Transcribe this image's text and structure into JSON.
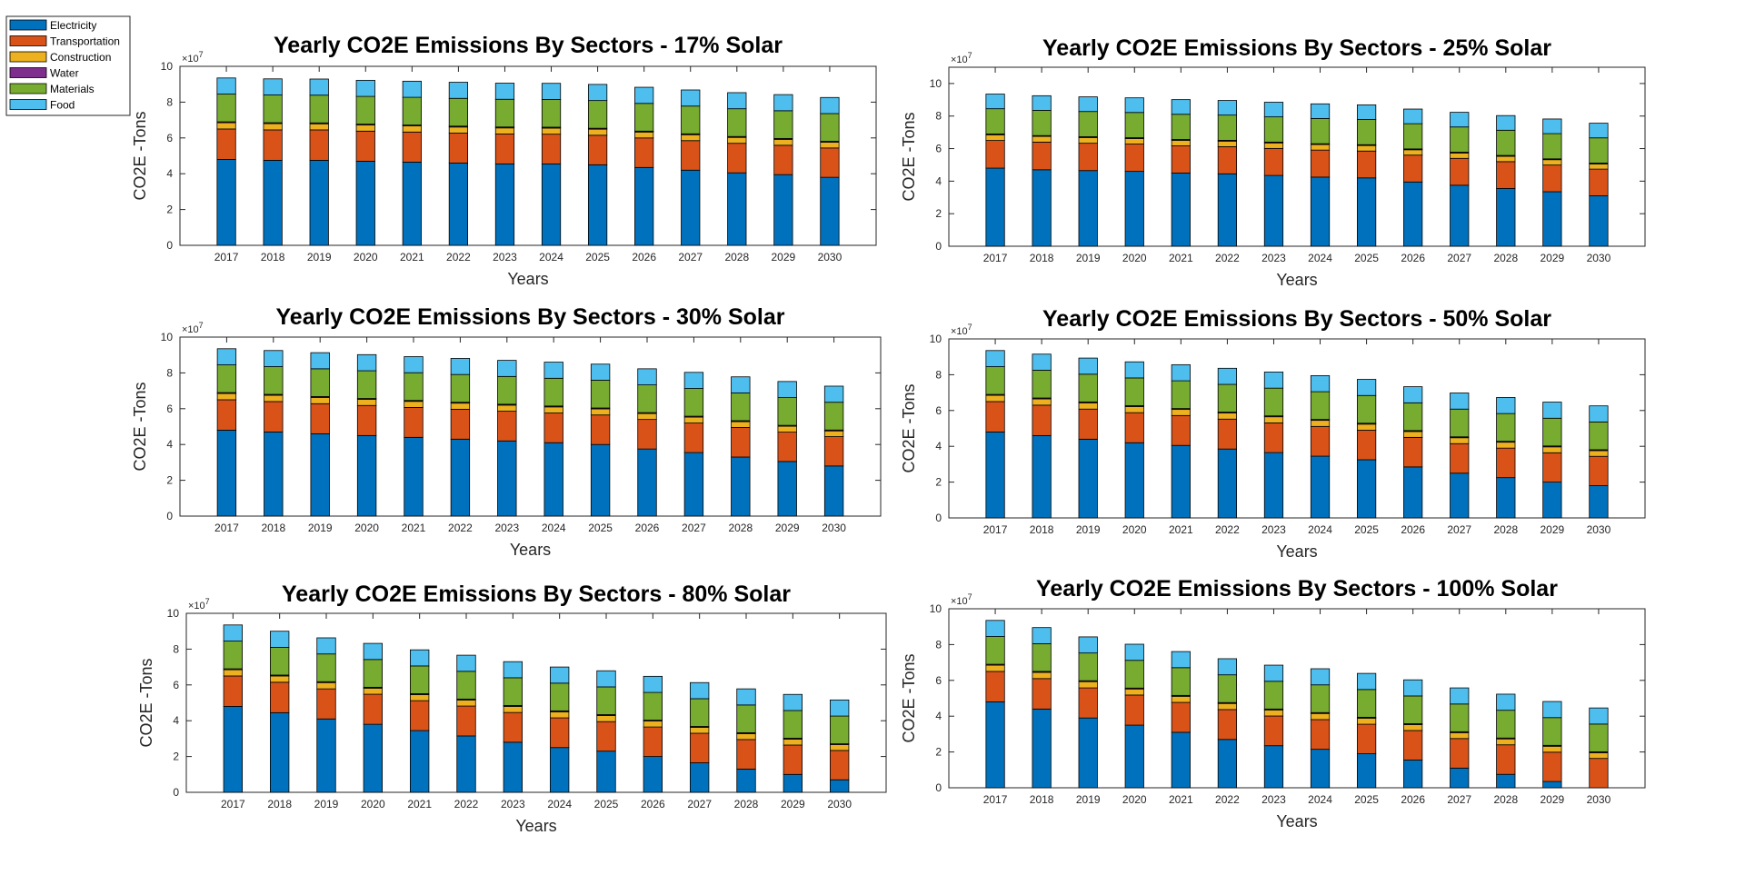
{
  "legend": {
    "placement": "top-left outside",
    "entries": [
      {
        "name": "Electricity",
        "color": "#0072BD"
      },
      {
        "name": "Transportation",
        "color": "#D95319"
      },
      {
        "name": "Construction",
        "color": "#EDB120"
      },
      {
        "name": "Water",
        "color": "#7E2F8E"
      },
      {
        "name": "Materials",
        "color": "#77AC30"
      },
      {
        "name": "Food",
        "color": "#4DBEEE"
      }
    ]
  },
  "chart_data": [
    {
      "type": "bar",
      "stacked": true,
      "title": "Yearly CO2E Emissions By Sectors - 17% Solar",
      "xlabel": "Years",
      "ylabel": "CO2E -Tons",
      "y_exponent_label": "×10",
      "y_exponent": "7",
      "ylim": [
        0,
        10
      ],
      "yticks": [
        0,
        2,
        4,
        6,
        8,
        10
      ],
      "categories": [
        "2017",
        "2018",
        "2019",
        "2020",
        "2021",
        "2022",
        "2023",
        "2024",
        "2025",
        "2026",
        "2027",
        "2028",
        "2029",
        "2030"
      ],
      "series": [
        {
          "name": "Electricity",
          "values": [
            4.8,
            4.75,
            4.75,
            4.7,
            4.65,
            4.6,
            4.55,
            4.55,
            4.5,
            4.35,
            4.2,
            4.05,
            3.95,
            3.8
          ]
        },
        {
          "name": "Transportation",
          "values": [
            1.7,
            1.7,
            1.7,
            1.68,
            1.68,
            1.67,
            1.67,
            1.66,
            1.65,
            1.65,
            1.65,
            1.65,
            1.64,
            1.64
          ]
        },
        {
          "name": "Construction",
          "values": [
            0.35,
            0.35,
            0.34,
            0.34,
            0.34,
            0.34,
            0.34,
            0.34,
            0.34,
            0.33,
            0.33,
            0.33,
            0.33,
            0.32
          ]
        },
        {
          "name": "Water",
          "values": [
            0.05,
            0.05,
            0.05,
            0.05,
            0.05,
            0.05,
            0.05,
            0.05,
            0.05,
            0.05,
            0.05,
            0.05,
            0.05,
            0.05
          ]
        },
        {
          "name": "Materials",
          "values": [
            1.55,
            1.55,
            1.55,
            1.55,
            1.55,
            1.55,
            1.55,
            1.55,
            1.55,
            1.55,
            1.55,
            1.55,
            1.55,
            1.55
          ]
        },
        {
          "name": "Food",
          "values": [
            0.9,
            0.9,
            0.9,
            0.9,
            0.9,
            0.9,
            0.9,
            0.9,
            0.9,
            0.9,
            0.9,
            0.9,
            0.9,
            0.9
          ]
        }
      ]
    },
    {
      "type": "bar",
      "stacked": true,
      "title": "Yearly CO2E Emissions By Sectors - 25% Solar",
      "xlabel": "Years",
      "ylabel": "CO2E -Tons",
      "y_exponent_label": "×10",
      "y_exponent": "7",
      "ylim": [
        0,
        11
      ],
      "yticks": [
        0,
        2,
        4,
        6,
        8,
        10
      ],
      "categories": [
        "2017",
        "2018",
        "2019",
        "2020",
        "2021",
        "2022",
        "2023",
        "2024",
        "2025",
        "2026",
        "2027",
        "2028",
        "2029",
        "2030"
      ],
      "series": [
        {
          "name": "Electricity",
          "values": [
            4.8,
            4.7,
            4.65,
            4.6,
            4.5,
            4.45,
            4.35,
            4.25,
            4.2,
            3.95,
            3.75,
            3.55,
            3.35,
            3.1
          ]
        },
        {
          "name": "Transportation",
          "values": [
            1.7,
            1.7,
            1.68,
            1.68,
            1.67,
            1.67,
            1.66,
            1.66,
            1.65,
            1.65,
            1.65,
            1.65,
            1.64,
            1.64
          ]
        },
        {
          "name": "Construction",
          "values": [
            0.35,
            0.35,
            0.35,
            0.34,
            0.34,
            0.34,
            0.34,
            0.34,
            0.34,
            0.33,
            0.33,
            0.33,
            0.33,
            0.32
          ]
        },
        {
          "name": "Water",
          "values": [
            0.05,
            0.05,
            0.05,
            0.05,
            0.05,
            0.05,
            0.05,
            0.05,
            0.05,
            0.05,
            0.05,
            0.05,
            0.05,
            0.05
          ]
        },
        {
          "name": "Materials",
          "values": [
            1.55,
            1.55,
            1.55,
            1.55,
            1.55,
            1.55,
            1.55,
            1.55,
            1.55,
            1.55,
            1.55,
            1.55,
            1.55,
            1.55
          ]
        },
        {
          "name": "Food",
          "values": [
            0.9,
            0.9,
            0.9,
            0.9,
            0.9,
            0.9,
            0.9,
            0.9,
            0.9,
            0.9,
            0.9,
            0.9,
            0.9,
            0.9
          ]
        }
      ]
    },
    {
      "type": "bar",
      "stacked": true,
      "title": "Yearly CO2E Emissions By Sectors - 30% Solar",
      "xlabel": "Years",
      "ylabel": "CO2E -Tons",
      "y_exponent_label": "×10",
      "y_exponent": "7",
      "ylim": [
        0,
        10
      ],
      "yticks": [
        0,
        2,
        4,
        6,
        8,
        10
      ],
      "categories": [
        "2017",
        "2018",
        "2019",
        "2020",
        "2021",
        "2022",
        "2023",
        "2024",
        "2025",
        "2026",
        "2027",
        "2028",
        "2029",
        "2030"
      ],
      "series": [
        {
          "name": "Electricity",
          "values": [
            4.8,
            4.7,
            4.6,
            4.5,
            4.4,
            4.3,
            4.2,
            4.1,
            4.0,
            3.75,
            3.55,
            3.3,
            3.05,
            2.8
          ]
        },
        {
          "name": "Transportation",
          "values": [
            1.7,
            1.7,
            1.68,
            1.68,
            1.67,
            1.67,
            1.66,
            1.66,
            1.65,
            1.65,
            1.65,
            1.65,
            1.64,
            1.64
          ]
        },
        {
          "name": "Construction",
          "values": [
            0.35,
            0.35,
            0.35,
            0.34,
            0.34,
            0.34,
            0.34,
            0.34,
            0.34,
            0.33,
            0.33,
            0.33,
            0.33,
            0.32
          ]
        },
        {
          "name": "Water",
          "values": [
            0.05,
            0.05,
            0.05,
            0.05,
            0.05,
            0.05,
            0.05,
            0.05,
            0.05,
            0.05,
            0.05,
            0.05,
            0.05,
            0.05
          ]
        },
        {
          "name": "Materials",
          "values": [
            1.55,
            1.55,
            1.55,
            1.55,
            1.55,
            1.55,
            1.55,
            1.55,
            1.55,
            1.55,
            1.55,
            1.55,
            1.55,
            1.55
          ]
        },
        {
          "name": "Food",
          "values": [
            0.9,
            0.9,
            0.9,
            0.9,
            0.9,
            0.9,
            0.9,
            0.9,
            0.9,
            0.9,
            0.9,
            0.9,
            0.9,
            0.9
          ]
        }
      ]
    },
    {
      "type": "bar",
      "stacked": true,
      "title": "Yearly CO2E Emissions By Sectors - 50% Solar",
      "xlabel": "Years",
      "ylabel": "CO2E -Tons",
      "y_exponent_label": "×10",
      "y_exponent": "7",
      "ylim": [
        0,
        10
      ],
      "yticks": [
        0,
        2,
        4,
        6,
        8,
        10
      ],
      "categories": [
        "2017",
        "2018",
        "2019",
        "2020",
        "2021",
        "2022",
        "2023",
        "2024",
        "2025",
        "2026",
        "2027",
        "2028",
        "2029",
        "2030"
      ],
      "series": [
        {
          "name": "Electricity",
          "values": [
            4.8,
            4.6,
            4.4,
            4.2,
            4.05,
            3.85,
            3.65,
            3.45,
            3.25,
            2.85,
            2.5,
            2.25,
            2.0,
            1.8
          ]
        },
        {
          "name": "Transportation",
          "values": [
            1.7,
            1.7,
            1.68,
            1.68,
            1.67,
            1.67,
            1.66,
            1.66,
            1.65,
            1.65,
            1.65,
            1.65,
            1.64,
            1.64
          ]
        },
        {
          "name": "Construction",
          "values": [
            0.35,
            0.35,
            0.35,
            0.34,
            0.34,
            0.34,
            0.34,
            0.34,
            0.34,
            0.33,
            0.33,
            0.33,
            0.33,
            0.32
          ]
        },
        {
          "name": "Water",
          "values": [
            0.05,
            0.05,
            0.05,
            0.05,
            0.05,
            0.05,
            0.05,
            0.05,
            0.05,
            0.05,
            0.05,
            0.05,
            0.05,
            0.05
          ]
        },
        {
          "name": "Materials",
          "values": [
            1.55,
            1.55,
            1.55,
            1.55,
            1.55,
            1.55,
            1.55,
            1.55,
            1.55,
            1.55,
            1.55,
            1.55,
            1.55,
            1.55
          ]
        },
        {
          "name": "Food",
          "values": [
            0.9,
            0.9,
            0.9,
            0.9,
            0.9,
            0.9,
            0.9,
            0.9,
            0.9,
            0.9,
            0.9,
            0.9,
            0.9,
            0.9
          ]
        }
      ]
    },
    {
      "type": "bar",
      "stacked": true,
      "title": "Yearly CO2E Emissions By Sectors - 80% Solar",
      "xlabel": "Years",
      "ylabel": "CO2E -Tons",
      "y_exponent_label": "×10",
      "y_exponent": "7",
      "ylim": [
        0,
        10
      ],
      "yticks": [
        0,
        2,
        4,
        6,
        8,
        10
      ],
      "categories": [
        "2017",
        "2018",
        "2019",
        "2020",
        "2021",
        "2022",
        "2023",
        "2024",
        "2025",
        "2026",
        "2027",
        "2028",
        "2029",
        "2030"
      ],
      "series": [
        {
          "name": "Electricity",
          "values": [
            4.8,
            4.45,
            4.1,
            3.8,
            3.45,
            3.15,
            2.8,
            2.5,
            2.3,
            2.0,
            1.65,
            1.3,
            1.0,
            0.7
          ]
        },
        {
          "name": "Transportation",
          "values": [
            1.7,
            1.7,
            1.68,
            1.68,
            1.67,
            1.67,
            1.66,
            1.66,
            1.65,
            1.65,
            1.65,
            1.65,
            1.64,
            1.64
          ]
        },
        {
          "name": "Construction",
          "values": [
            0.35,
            0.35,
            0.35,
            0.34,
            0.34,
            0.34,
            0.34,
            0.34,
            0.34,
            0.33,
            0.33,
            0.33,
            0.33,
            0.32
          ]
        },
        {
          "name": "Water",
          "values": [
            0.05,
            0.05,
            0.05,
            0.05,
            0.05,
            0.05,
            0.05,
            0.05,
            0.05,
            0.05,
            0.05,
            0.05,
            0.05,
            0.05
          ]
        },
        {
          "name": "Materials",
          "values": [
            1.55,
            1.55,
            1.55,
            1.55,
            1.55,
            1.55,
            1.55,
            1.55,
            1.55,
            1.55,
            1.55,
            1.55,
            1.55,
            1.55
          ]
        },
        {
          "name": "Food",
          "values": [
            0.9,
            0.9,
            0.9,
            0.9,
            0.9,
            0.9,
            0.9,
            0.9,
            0.9,
            0.9,
            0.9,
            0.9,
            0.9,
            0.9
          ]
        }
      ]
    },
    {
      "type": "bar",
      "stacked": true,
      "title": "Yearly CO2E Emissions By Sectors - 100% Solar",
      "xlabel": "Years",
      "ylabel": "CO2E -Tons",
      "y_exponent_label": "×10",
      "y_exponent": "7",
      "ylim": [
        0,
        10
      ],
      "yticks": [
        0,
        2,
        4,
        6,
        8,
        10
      ],
      "categories": [
        "2017",
        "2018",
        "2019",
        "2020",
        "2021",
        "2022",
        "2023",
        "2024",
        "2025",
        "2026",
        "2027",
        "2028",
        "2029",
        "2030"
      ],
      "series": [
        {
          "name": "Electricity",
          "values": [
            4.8,
            4.4,
            3.9,
            3.5,
            3.1,
            2.7,
            2.35,
            2.15,
            1.9,
            1.55,
            1.1,
            0.75,
            0.35,
            0.0
          ]
        },
        {
          "name": "Transportation",
          "values": [
            1.7,
            1.7,
            1.68,
            1.68,
            1.67,
            1.67,
            1.66,
            1.66,
            1.65,
            1.65,
            1.65,
            1.65,
            1.64,
            1.64
          ]
        },
        {
          "name": "Construction",
          "values": [
            0.35,
            0.35,
            0.35,
            0.34,
            0.34,
            0.34,
            0.34,
            0.34,
            0.34,
            0.33,
            0.33,
            0.33,
            0.33,
            0.32
          ]
        },
        {
          "name": "Water",
          "values": [
            0.05,
            0.05,
            0.05,
            0.05,
            0.05,
            0.05,
            0.05,
            0.05,
            0.05,
            0.05,
            0.05,
            0.05,
            0.05,
            0.05
          ]
        },
        {
          "name": "Materials",
          "values": [
            1.55,
            1.55,
            1.55,
            1.55,
            1.55,
            1.55,
            1.55,
            1.55,
            1.55,
            1.55,
            1.55,
            1.55,
            1.55,
            1.55
          ]
        },
        {
          "name": "Food",
          "values": [
            0.9,
            0.9,
            0.9,
            0.9,
            0.9,
            0.9,
            0.9,
            0.9,
            0.9,
            0.9,
            0.9,
            0.9,
            0.9,
            0.9
          ]
        }
      ]
    }
  ]
}
